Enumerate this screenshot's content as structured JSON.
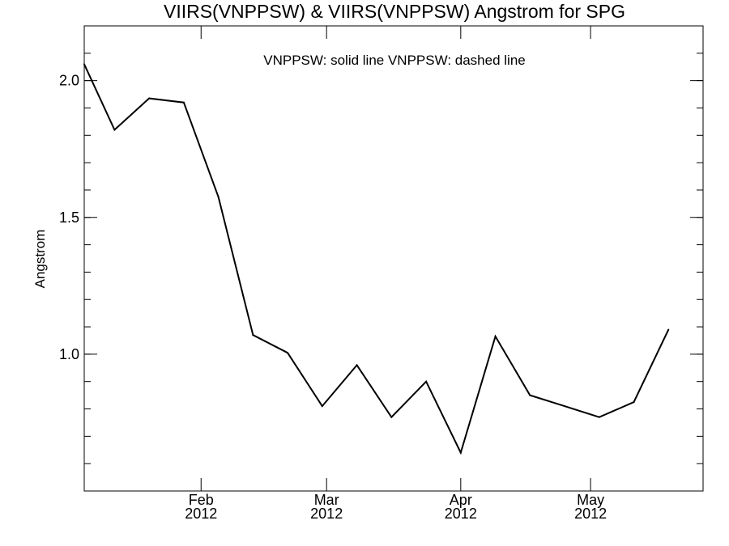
{
  "chart_data": {
    "type": "line",
    "title": "VIIRS(VNPPSW) & VIIRS(VNPPSW)  Angstrom for SPG",
    "legend_text": "VNPPSW: solid line   VNPPSW: dashed line",
    "xlabel": "",
    "ylabel": "Angstrom",
    "xlim": [
      "2012-01-05",
      "2012-05-27"
    ],
    "ylim": [
      0.5,
      2.2
    ],
    "y_ticks": [
      {
        "value": 1.0,
        "label": "1.0"
      },
      {
        "value": 1.5,
        "label": "1.5"
      },
      {
        "value": 2.0,
        "label": "2.0"
      }
    ],
    "y_minor_step": 0.1,
    "x_ticks": [
      {
        "date": "2012-02-01",
        "month": "Feb",
        "year": "2012"
      },
      {
        "date": "2012-03-01",
        "month": "Mar",
        "year": "2012"
      },
      {
        "date": "2012-04-01",
        "month": "Apr",
        "year": "2012"
      },
      {
        "date": "2012-05-01",
        "month": "May",
        "year": "2012"
      }
    ],
    "grid": false,
    "legend_position": "top-center",
    "series": [
      {
        "style": "solid",
        "color": "#000000",
        "x": [
          "2012-01-05",
          "2012-01-12",
          "2012-01-20",
          "2012-01-28",
          "2012-02-05",
          "2012-02-13",
          "2012-02-21",
          "2012-02-29",
          "2012-03-08",
          "2012-03-16",
          "2012-03-24",
          "2012-04-01",
          "2012-04-09",
          "2012-04-17",
          "2012-04-25",
          "2012-05-03",
          "2012-05-11",
          "2012-05-19"
        ],
        "y": [
          2.06,
          1.82,
          1.935,
          1.92,
          1.575,
          1.07,
          1.005,
          0.81,
          0.96,
          0.77,
          0.9,
          0.64,
          1.065,
          0.85,
          0.81,
          0.77,
          0.825,
          1.09
        ]
      }
    ]
  }
}
